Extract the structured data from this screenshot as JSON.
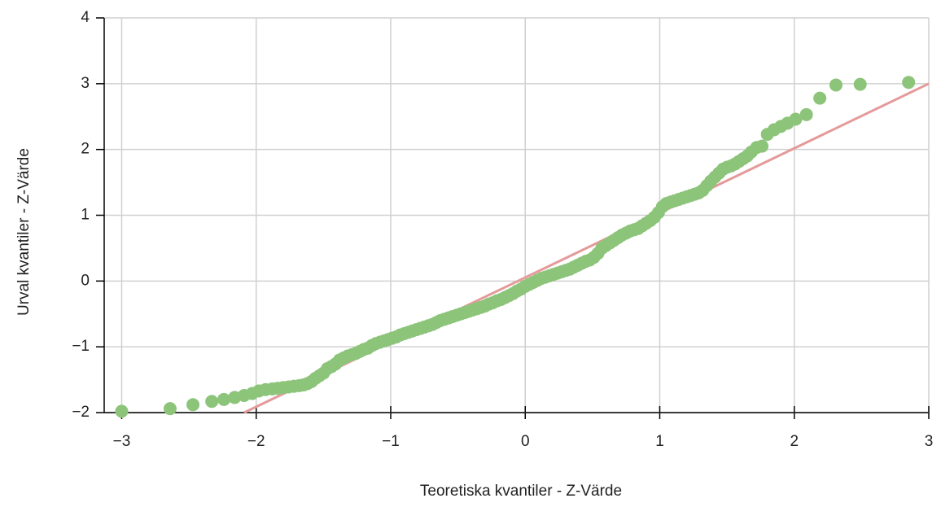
{
  "chart_data": {
    "type": "scatter",
    "x_label": "Teoretiska kvantiler - Z-Värde",
    "y_label": "Urval kvantiler - Z-Värde",
    "xlim": [
      -3.13,
      3
    ],
    "ylim": [
      -2,
      4
    ],
    "xticks": [
      {
        "value": -3,
        "label": "−3"
      },
      {
        "value": -2,
        "label": "−2"
      },
      {
        "value": -1,
        "label": "−1"
      },
      0,
      1,
      2,
      3
    ],
    "yticks": [
      {
        "value": -2,
        "label": "−2"
      },
      {
        "value": -1,
        "label": "−1"
      },
      0,
      1,
      2,
      3,
      4
    ],
    "grid": true,
    "series": [
      {
        "type": "scatter",
        "color": "#8cc47a",
        "x": [
          -3,
          -2.64,
          -2.47,
          -2.33,
          -2.24,
          -2.16,
          -2.09,
          -2.03,
          -1.98,
          -1.93,
          -1.88,
          -1.84,
          -1.8,
          -1.76,
          -1.72,
          -1.68,
          -1.65,
          -1.62,
          -1.59,
          -1.56,
          -1.53,
          -1.5,
          -1.47,
          -1.44,
          -1.41,
          -1.38,
          -1.35,
          -1.32,
          -1.29,
          -1.26,
          -1.23,
          -1.2,
          -1.17,
          -1.14,
          -1.11,
          -1.08,
          -1.05,
          -1.02,
          -0.99,
          -0.96,
          -0.93,
          -0.9,
          -0.87,
          -0.84,
          -0.81,
          -0.78,
          -0.75,
          -0.72,
          -0.69,
          -0.66,
          -0.63,
          -0.6,
          -0.57,
          -0.54,
          -0.51,
          -0.48,
          -0.45,
          -0.42,
          -0.39,
          -0.36,
          -0.33,
          -0.3,
          -0.27,
          -0.24,
          -0.21,
          -0.18,
          -0.15,
          -0.12,
          -0.09,
          -0.06,
          -0.03,
          0,
          0.03,
          0.06,
          0.09,
          0.12,
          0.15,
          0.18,
          0.21,
          0.24,
          0.27,
          0.3,
          0.33,
          0.36,
          0.39,
          0.42,
          0.45,
          0.48,
          0.51,
          0.54,
          0.57,
          0.6,
          0.63,
          0.66,
          0.69,
          0.72,
          0.75,
          0.78,
          0.81,
          0.84,
          0.87,
          0.9,
          0.93,
          0.96,
          0.99,
          1.02,
          1.05,
          1.08,
          1.11,
          1.14,
          1.17,
          1.2,
          1.23,
          1.26,
          1.29,
          1.32,
          1.35,
          1.38,
          1.41,
          1.44,
          1.47,
          1.5,
          1.53,
          1.56,
          1.59,
          1.62,
          1.65,
          1.68,
          1.72,
          1.76,
          1.8,
          1.85,
          1.9,
          1.95,
          2.01,
          2.09,
          2.19,
          2.31,
          2.49,
          2.85
        ],
        "values": [
          -1.98,
          -1.94,
          -1.88,
          -1.83,
          -1.8,
          -1.77,
          -1.74,
          -1.71,
          -1.67,
          -1.65,
          -1.64,
          -1.63,
          -1.62,
          -1.61,
          -1.6,
          -1.59,
          -1.58,
          -1.56,
          -1.53,
          -1.48,
          -1.44,
          -1.4,
          -1.33,
          -1.3,
          -1.26,
          -1.2,
          -1.17,
          -1.14,
          -1.12,
          -1.1,
          -1.07,
          -1.04,
          -1.02,
          -0.98,
          -0.95,
          -0.93,
          -0.91,
          -0.89,
          -0.87,
          -0.85,
          -0.82,
          -0.8,
          -0.78,
          -0.76,
          -0.74,
          -0.72,
          -0.7,
          -0.68,
          -0.66,
          -0.63,
          -0.6,
          -0.58,
          -0.56,
          -0.54,
          -0.52,
          -0.5,
          -0.48,
          -0.46,
          -0.44,
          -0.42,
          -0.4,
          -0.38,
          -0.35,
          -0.33,
          -0.3,
          -0.28,
          -0.25,
          -0.22,
          -0.19,
          -0.15,
          -0.12,
          -0.08,
          -0.05,
          -0.02,
          0.01,
          0.04,
          0.06,
          0.08,
          0.1,
          0.12,
          0.14,
          0.16,
          0.18,
          0.21,
          0.24,
          0.27,
          0.3,
          0.32,
          0.36,
          0.42,
          0.5,
          0.54,
          0.58,
          0.62,
          0.66,
          0.7,
          0.73,
          0.76,
          0.78,
          0.8,
          0.84,
          0.88,
          0.92,
          0.97,
          1.04,
          1.13,
          1.18,
          1.2,
          1.22,
          1.24,
          1.26,
          1.28,
          1.3,
          1.32,
          1.34,
          1.38,
          1.45,
          1.52,
          1.58,
          1.64,
          1.7,
          1.73,
          1.75,
          1.78,
          1.82,
          1.86,
          1.9,
          1.96,
          2.03,
          2.05,
          2.23,
          2.3,
          2.35,
          2.4,
          2.46,
          2.53,
          2.78,
          2.98,
          2.99,
          3.02
        ]
      },
      {
        "type": "line",
        "color": "#e59a9a",
        "x": [
          -2.09,
          3
        ],
        "values": [
          -2,
          3
        ]
      }
    ]
  }
}
